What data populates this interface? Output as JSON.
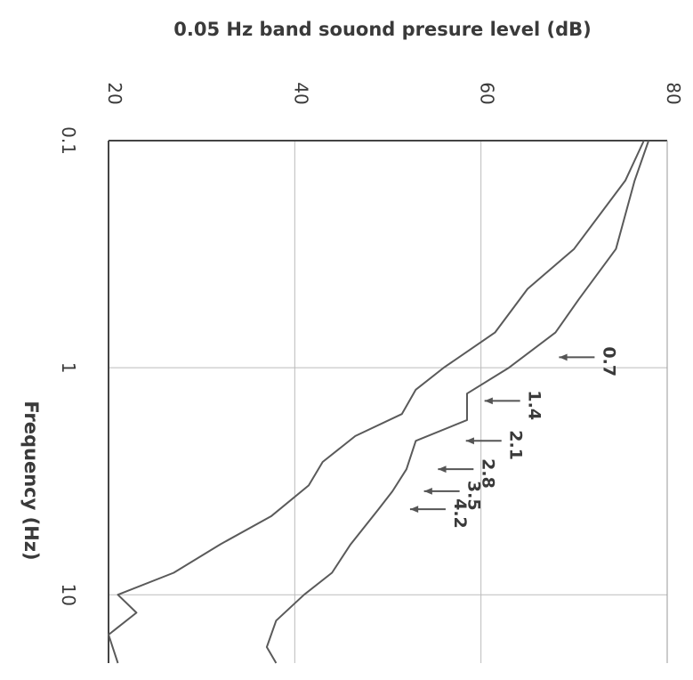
{
  "chart_data": {
    "type": "line",
    "title": "",
    "xlabel": "Frequency (Hz)",
    "ylabel": "0.05 Hz band souond presure level (dB)",
    "x_scale": "log",
    "xlim": [
      0.1,
      20
    ],
    "ylim": [
      20,
      80
    ],
    "x_ticks": [
      "0.1",
      "1",
      "10"
    ],
    "y_ticks": [
      "20",
      "40",
      "60",
      "80"
    ],
    "grid": true,
    "orientation": "rotated 90° clockwise (frequency runs down the page, level runs left to right)",
    "series": [
      {
        "x": [
          0.1,
          0.15,
          0.3,
          0.5,
          0.7,
          1.0,
          1.3,
          1.7,
          2.1,
          2.8,
          3.5,
          4.2,
          6,
          8,
          10,
          13,
          17,
          20
        ],
        "values": [
          78,
          76.5,
          74.5,
          70.5,
          68,
          63,
          58.5,
          58.5,
          53,
          52,
          50.5,
          49,
          46,
          44,
          41,
          38,
          37,
          38
        ]
      },
      {
        "x": [
          0.1,
          0.15,
          0.3,
          0.45,
          0.7,
          1.0,
          1.25,
          1.6,
          2.0,
          2.6,
          3.3,
          4.5,
          6,
          8,
          10,
          12,
          15,
          20
        ],
        "values": [
          77.5,
          75.5,
          70,
          65,
          61.5,
          56,
          53,
          51.5,
          46.5,
          43,
          41.5,
          37.5,
          32,
          27,
          21,
          23,
          20,
          21
        ]
      }
    ],
    "annotations": [
      {
        "text": "0.7",
        "x": 0.9,
        "y": 68
      },
      {
        "text": "1.4",
        "x": 1.4,
        "y": 60
      },
      {
        "text": "2.1",
        "x": 2.1,
        "y": 58
      },
      {
        "text": "2.8",
        "x": 2.8,
        "y": 55
      },
      {
        "text": "3.5",
        "x": 3.5,
        "y": 53.5
      },
      {
        "text": "4.2",
        "x": 4.2,
        "y": 52
      }
    ],
    "colors": {
      "line": "#5a5a5a",
      "grid": "#bbbbbb",
      "arrow": "#555555",
      "text": "#3a3a3a"
    }
  }
}
